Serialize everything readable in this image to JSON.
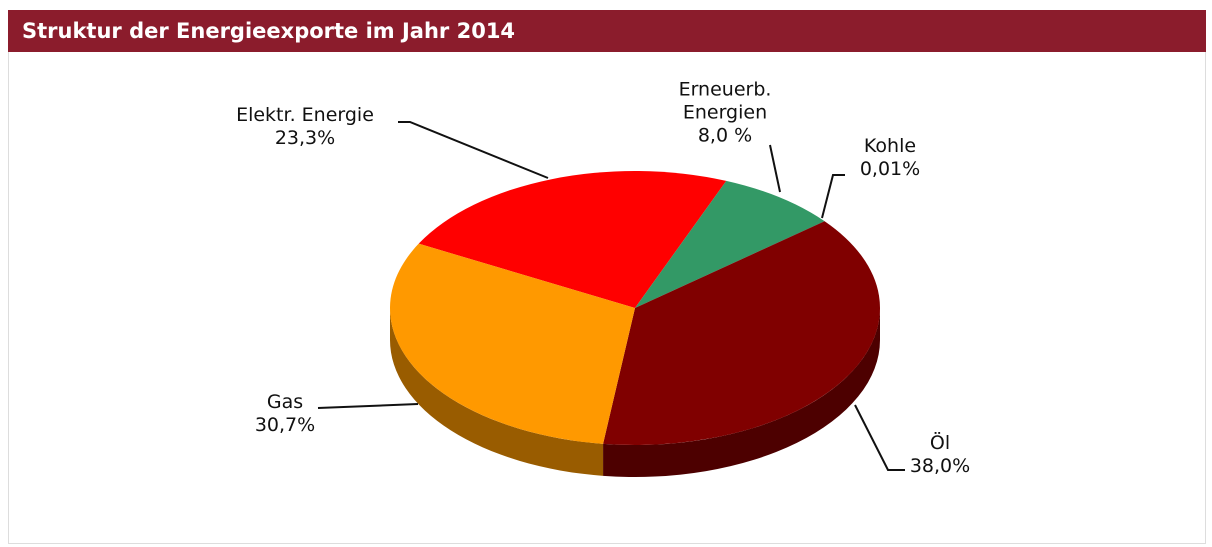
{
  "chart_data": {
    "type": "pie",
    "title": "Struktur der Energieexporte im Jahr 2014",
    "categories": [
      "Elektr. Energie",
      "Erneuerb. Energien",
      "Kohle",
      "Öl",
      "Gas"
    ],
    "values": [
      23.3,
      8.0,
      0.01,
      38.0,
      30.7
    ],
    "value_labels": [
      "23,3%",
      "8,0 %",
      "0,01%",
      "38,0%",
      "30,7%"
    ],
    "colors": [
      "#ff0000",
      "#339966",
      "#000000",
      "#800000",
      "#ff9900"
    ]
  }
}
